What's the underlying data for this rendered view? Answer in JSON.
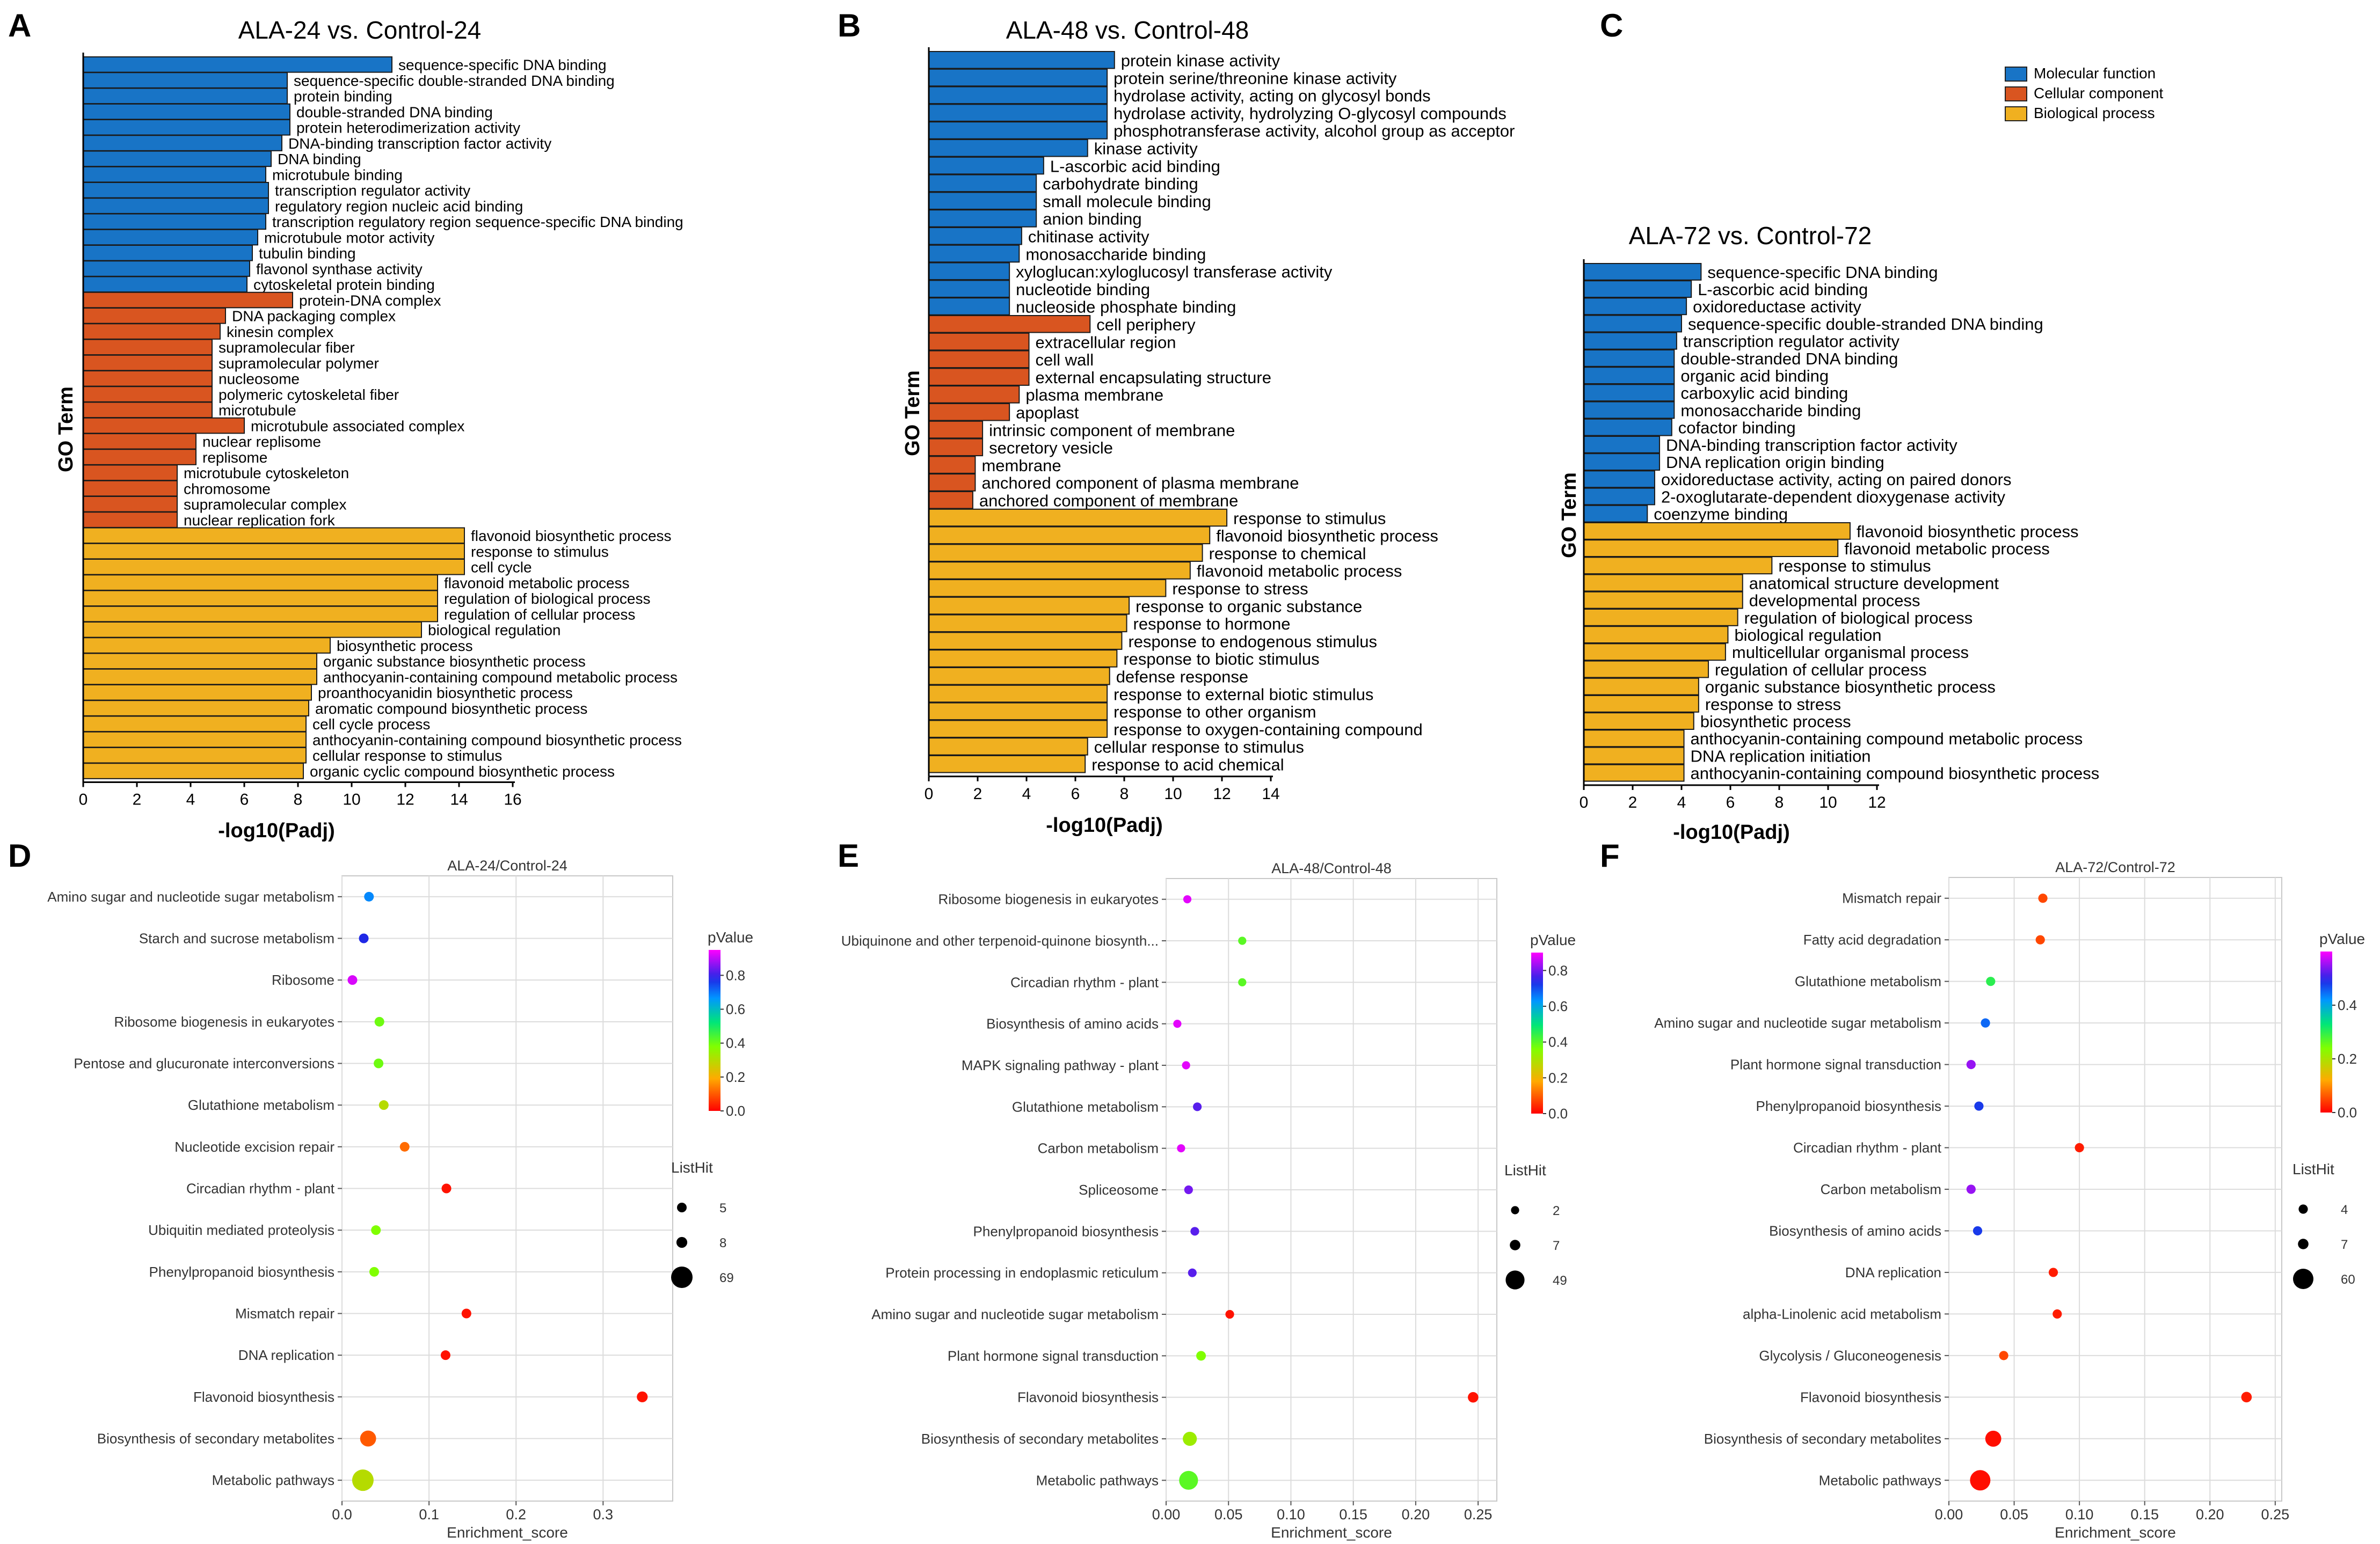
{
  "legend": {
    "items": [
      {
        "label": "Molecular function",
        "color": "#1874c6"
      },
      {
        "label": "Cellular component",
        "color": "#d95520"
      },
      {
        "label": "Biological process",
        "color": "#f0b020"
      }
    ]
  },
  "common": {
    "go_ylabel": "GO Term",
    "go_xlabel": "-log10(Padj)",
    "dot_xlabel": "Enrichment_score",
    "pvalue_title": "pValue",
    "listhit_title": "ListHit"
  },
  "chart_data": [
    {
      "type": "bar",
      "panel": "A",
      "title": "ALA-24 vs. Control-24",
      "xlabel": "-log10(Padj)",
      "ylabel": "GO Term",
      "xlim": [
        0,
        16
      ],
      "xticks": [
        0,
        2,
        4,
        6,
        8,
        10,
        12,
        14,
        16
      ],
      "categories": [
        "sequence-specific DNA binding",
        "sequence-specific double-stranded DNA binding",
        "protein binding",
        "double-stranded DNA binding",
        "protein heterodimerization activity",
        "DNA-binding transcription factor activity",
        "DNA binding",
        "microtubule binding",
        "transcription regulator activity",
        "regulatory region nucleic acid binding",
        "transcription regulatory region sequence-specific DNA binding",
        "microtubule motor activity",
        "tubulin binding",
        "flavonol synthase activity",
        "cytoskeletal protein binding",
        "protein-DNA complex",
        "DNA packaging complex",
        "kinesin complex",
        "supramolecular fiber",
        "supramolecular polymer",
        "nucleosome",
        "polymeric cytoskeletal fiber",
        "microtubule",
        "microtubule associated complex",
        "nuclear replisome",
        "replisome",
        "microtubule cytoskeleton",
        "chromosome",
        "supramolecular complex",
        "nuclear replication fork",
        "flavonoid biosynthetic process",
        "response to stimulus",
        "cell cycle",
        "flavonoid metabolic process",
        "regulation of biological process",
        "regulation of cellular process",
        "biological regulation",
        "biosynthetic process",
        "organic substance biosynthetic process",
        "anthocyanin-containing compound metabolic process",
        "proanthocyanidin biosynthetic process",
        "aromatic compound biosynthetic process",
        "cell cycle process",
        "anthocyanin-containing compound biosynthetic process",
        "cellular response to stimulus",
        "organic cyclic compound biosynthetic process"
      ],
      "values": [
        11.5,
        7.6,
        7.6,
        7.7,
        7.7,
        7.4,
        7.0,
        6.8,
        6.9,
        6.9,
        6.8,
        6.5,
        6.3,
        6.2,
        6.1,
        7.8,
        5.3,
        5.1,
        4.8,
        4.8,
        4.8,
        4.8,
        4.8,
        6.0,
        4.2,
        4.2,
        3.5,
        3.5,
        3.5,
        3.5,
        14.2,
        14.2,
        14.2,
        13.2,
        13.2,
        13.2,
        12.6,
        9.2,
        8.7,
        8.7,
        8.5,
        8.4,
        8.3,
        8.3,
        8.3,
        8.2
      ],
      "groups": [
        "MF",
        "MF",
        "MF",
        "MF",
        "MF",
        "MF",
        "MF",
        "MF",
        "MF",
        "MF",
        "MF",
        "MF",
        "MF",
        "MF",
        "MF",
        "CC",
        "CC",
        "CC",
        "CC",
        "CC",
        "CC",
        "CC",
        "CC",
        "CC",
        "CC",
        "CC",
        "CC",
        "CC",
        "CC",
        "CC",
        "BP",
        "BP",
        "BP",
        "BP",
        "BP",
        "BP",
        "BP",
        "BP",
        "BP",
        "BP",
        "BP",
        "BP",
        "BP",
        "BP",
        "BP",
        "BP"
      ]
    },
    {
      "type": "bar",
      "panel": "B",
      "title": "ALA-48 vs. Control-48",
      "xlabel": "-log10(Padj)",
      "ylabel": "GO Term",
      "xlim": [
        0,
        14
      ],
      "xticks": [
        0,
        2,
        4,
        6,
        8,
        10,
        12,
        14
      ],
      "categories": [
        "protein kinase activity",
        "protein serine/threonine kinase activity",
        "hydrolase activity, acting on glycosyl bonds",
        "hydrolase activity, hydrolyzing O-glycosyl compounds",
        "phosphotransferase activity, alcohol group as acceptor",
        "kinase activity",
        "L-ascorbic acid binding",
        "carbohydrate binding",
        "small molecule binding",
        "anion binding",
        "chitinase activity",
        "monosaccharide binding",
        "xyloglucan:xyloglucosyl transferase activity",
        "nucleotide binding",
        "nucleoside phosphate binding",
        "cell periphery",
        "extracellular region",
        "cell wall",
        "external encapsulating structure",
        "plasma membrane",
        "apoplast",
        "intrinsic component of membrane",
        "secretory vesicle",
        "membrane",
        "anchored component of plasma membrane",
        "anchored component of membrane",
        "response to stimulus",
        "flavonoid biosynthetic process",
        "response to chemical",
        "flavonoid metabolic process",
        "response to stress",
        "response to organic substance",
        "response to hormone",
        "response to endogenous stimulus",
        "response to biotic stimulus",
        "defense response",
        "response to external biotic stimulus",
        "response to other organism",
        "response to oxygen-containing compound",
        "cellular response to stimulus",
        "response to acid chemical"
      ],
      "values": [
        7.6,
        7.3,
        7.3,
        7.3,
        7.3,
        6.5,
        4.7,
        4.4,
        4.4,
        4.4,
        3.8,
        3.7,
        3.3,
        3.3,
        3.3,
        6.6,
        4.1,
        4.1,
        4.1,
        3.7,
        3.3,
        2.2,
        2.2,
        1.9,
        1.9,
        1.8,
        12.2,
        11.5,
        11.2,
        10.7,
        9.7,
        8.2,
        8.1,
        7.9,
        7.7,
        7.4,
        7.3,
        7.3,
        7.3,
        6.5,
        6.4
      ],
      "groups": [
        "MF",
        "MF",
        "MF",
        "MF",
        "MF",
        "MF",
        "MF",
        "MF",
        "MF",
        "MF",
        "MF",
        "MF",
        "MF",
        "MF",
        "MF",
        "CC",
        "CC",
        "CC",
        "CC",
        "CC",
        "CC",
        "CC",
        "CC",
        "CC",
        "CC",
        "CC",
        "BP",
        "BP",
        "BP",
        "BP",
        "BP",
        "BP",
        "BP",
        "BP",
        "BP",
        "BP",
        "BP",
        "BP",
        "BP",
        "BP",
        "BP"
      ]
    },
    {
      "type": "bar",
      "panel": "C",
      "title": "ALA-72 vs. Control-72",
      "xlabel": "-log10(Padj)",
      "ylabel": "GO Term",
      "xlim": [
        0,
        12
      ],
      "xticks": [
        0,
        2,
        4,
        6,
        8,
        10,
        12
      ],
      "categories": [
        "sequence-specific DNA binding",
        "L-ascorbic acid binding",
        "oxidoreductase activity",
        "sequence-specific double-stranded DNA binding",
        "transcription regulator activity",
        "double-stranded DNA binding",
        "organic acid binding",
        "carboxylic acid binding",
        "monosaccharide binding",
        "cofactor binding",
        "DNA-binding transcription factor activity",
        "DNA replication origin binding",
        "oxidoreductase activity, acting on paired donors",
        "2-oxoglutarate-dependent dioxygenase activity",
        "coenzyme binding",
        "flavonoid biosynthetic process",
        "flavonoid metabolic process",
        "response to stimulus",
        "anatomical structure development",
        "developmental process",
        "regulation of biological process",
        "biological regulation",
        "multicellular organismal process",
        "regulation of cellular process",
        "organic substance biosynthetic process",
        "response to stress",
        "biosynthetic process",
        "anthocyanin-containing compound metabolic process",
        "DNA replication initiation",
        "anthocyanin-containing compound biosynthetic process"
      ],
      "values": [
        4.8,
        4.4,
        4.2,
        4.0,
        3.8,
        3.7,
        3.7,
        3.7,
        3.7,
        3.6,
        3.1,
        3.1,
        2.9,
        2.9,
        2.6,
        10.9,
        10.4,
        7.7,
        6.5,
        6.5,
        6.3,
        5.9,
        5.8,
        5.1,
        4.7,
        4.7,
        4.5,
        4.1,
        4.1,
        4.1
      ],
      "groups": [
        "MF",
        "MF",
        "MF",
        "MF",
        "MF",
        "MF",
        "MF",
        "MF",
        "MF",
        "MF",
        "MF",
        "MF",
        "MF",
        "MF",
        "MF",
        "BP",
        "BP",
        "BP",
        "BP",
        "BP",
        "BP",
        "BP",
        "BP",
        "BP",
        "BP",
        "BP",
        "BP",
        "BP",
        "BP",
        "BP"
      ]
    },
    {
      "type": "scatter",
      "panel": "D",
      "title": "ALA-24/Control-24",
      "xlabel": "Enrichment_score",
      "xlim": [
        0,
        0.38
      ],
      "xticks": [
        0.0,
        0.1,
        0.2,
        0.3
      ],
      "xtick_labels": [
        "0.0",
        "0.1",
        "0.2",
        "0.3"
      ],
      "color_scale": {
        "title": "pValue",
        "min": 0.0,
        "max": 0.95,
        "ticks": [
          0.0,
          0.2,
          0.4,
          0.6,
          0.8
        ],
        "tick_labels": [
          "0.0",
          "0.2",
          "0.4",
          "0.6",
          "0.8"
        ]
      },
      "size_legend": {
        "title": "ListHit",
        "values": [
          5,
          8,
          69
        ]
      },
      "categories": [
        "Amino sugar and nucleotide sugar metabolism",
        "Starch and sucrose metabolism",
        "Ribosome",
        "Ribosome biogenesis in eukaryotes",
        "Pentose and glucuronate interconversions",
        "Glutathione metabolism",
        "Nucleotide excision repair",
        "Circadian rhythm - plant",
        "Ubiquitin mediated proteolysis",
        "Phenylpropanoid biosynthesis",
        "Mismatch repair",
        "DNA replication",
        "Flavonoid biosynthesis",
        "Biosynthesis of secondary metabolites",
        "Metabolic pathways"
      ],
      "x": [
        0.031,
        0.025,
        0.012,
        0.043,
        0.042,
        0.048,
        0.072,
        0.12,
        0.039,
        0.037,
        0.143,
        0.119,
        0.345,
        0.03,
        0.024
      ],
      "pvalue": [
        0.68,
        0.78,
        0.92,
        0.4,
        0.4,
        0.3,
        0.12,
        0.02,
        0.38,
        0.38,
        0.02,
        0.02,
        0.02,
        0.1,
        0.3
      ],
      "listhit": [
        5,
        5,
        5,
        5,
        5,
        5,
        5,
        5,
        5,
        5,
        5,
        5,
        8,
        30,
        69
      ]
    },
    {
      "type": "scatter",
      "panel": "E",
      "title": "ALA-48/Control-48",
      "xlabel": "Enrichment_score",
      "xlim": [
        0,
        0.265
      ],
      "xticks": [
        0.0,
        0.05,
        0.1,
        0.15,
        0.2,
        0.25
      ],
      "xtick_labels": [
        "0.00",
        "0.05",
        "0.10",
        "0.15",
        "0.20",
        "0.25"
      ],
      "color_scale": {
        "title": "pValue",
        "min": 0.0,
        "max": 0.9,
        "ticks": [
          0.0,
          0.2,
          0.4,
          0.6,
          0.8
        ],
        "tick_labels": [
          "0.0",
          "0.2",
          "0.4",
          "0.6",
          "0.8"
        ]
      },
      "size_legend": {
        "title": "ListHit",
        "values": [
          2,
          7,
          49
        ]
      },
      "categories": [
        "Ribosome biogenesis in eukaryotes",
        "Ubiquinone and other terpenoid-quinone biosynth...",
        "Circadian rhythm - plant",
        "Biosynthesis of amino acids",
        "MAPK signaling pathway - plant",
        "Glutathione metabolism",
        "Carbon metabolism",
        "Spliceosome",
        "Phenylpropanoid biosynthesis",
        "Protein processing in endoplasmic reticulum",
        "Amino sugar and nucleotide sugar metabolism",
        "Plant hormone signal transduction",
        "Flavonoid biosynthesis",
        "Biosynthesis of secondary metabolites",
        "Metabolic pathways"
      ],
      "x": [
        0.017,
        0.061,
        0.061,
        0.009,
        0.016,
        0.025,
        0.012,
        0.018,
        0.023,
        0.021,
        0.051,
        0.028,
        0.246,
        0.019,
        0.018
      ],
      "pvalue": [
        0.88,
        0.4,
        0.4,
        0.88,
        0.88,
        0.78,
        0.88,
        0.8,
        0.78,
        0.78,
        0.02,
        0.36,
        0.02,
        0.32,
        0.4
      ],
      "listhit": [
        2,
        2,
        2,
        2,
        2,
        3,
        2,
        3,
        3,
        3,
        3,
        5,
        7,
        20,
        49
      ]
    },
    {
      "type": "scatter",
      "panel": "F",
      "title": "ALA-72/Control-72",
      "xlabel": "Enrichment_score",
      "xlim": [
        0,
        0.255
      ],
      "xticks": [
        0.0,
        0.05,
        0.1,
        0.15,
        0.2,
        0.25
      ],
      "xtick_labels": [
        "0.00",
        "0.05",
        "0.10",
        "0.15",
        "0.20",
        "0.25"
      ],
      "color_scale": {
        "title": "pValue",
        "min": 0.0,
        "max": 0.6,
        "ticks": [
          0.0,
          0.2,
          0.4
        ],
        "tick_labels": [
          "0.0",
          "0.2",
          "0.4"
        ]
      },
      "size_legend": {
        "title": "ListHit",
        "values": [
          4,
          7,
          60
        ]
      },
      "categories": [
        "Mismatch repair",
        "Fatty acid degradation",
        "Glutathione metabolism",
        "Amino sugar and nucleotide sugar metabolism",
        "Plant hormone signal transduction",
        "Phenylpropanoid biosynthesis",
        "Circadian rhythm - plant",
        "Carbon metabolism",
        "Biosynthesis of amino acids",
        "DNA replication",
        "alpha-Linolenic acid metabolism",
        "Glycolysis / Gluconeogenesis",
        "Flavonoid biosynthesis",
        "Biosynthesis of secondary metabolites",
        "Metabolic pathways"
      ],
      "x": [
        0.072,
        0.07,
        0.032,
        0.028,
        0.017,
        0.023,
        0.1,
        0.017,
        0.022,
        0.08,
        0.083,
        0.042,
        0.228,
        0.034,
        0.024
      ],
      "pvalue": [
        0.05,
        0.05,
        0.3,
        0.45,
        0.55,
        0.48,
        0.02,
        0.55,
        0.48,
        0.02,
        0.02,
        0.05,
        0.02,
        0.01,
        0.01
      ],
      "listhit": [
        4,
        4,
        4,
        4,
        4,
        4,
        4,
        4,
        4,
        4,
        4,
        4,
        7,
        30,
        60
      ]
    }
  ],
  "panel_letters": [
    "A",
    "B",
    "C",
    "D",
    "E",
    "F"
  ]
}
